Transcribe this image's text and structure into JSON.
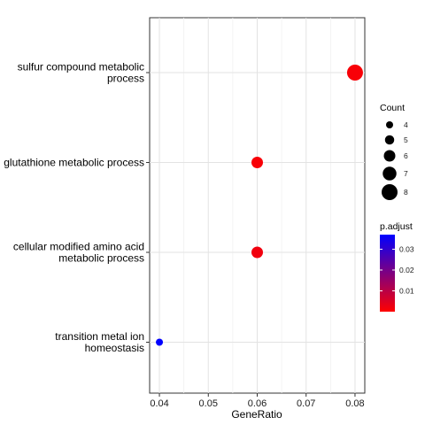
{
  "chart_data": {
    "type": "scatter",
    "xlabel": "GeneRatio",
    "ylabel": "",
    "xlim": [
      0.038,
      0.082
    ],
    "x_ticks": [
      "0.04",
      "0.05",
      "0.06",
      "0.07",
      "0.08"
    ],
    "x_tick_values": [
      0.04,
      0.05,
      0.06,
      0.07,
      0.08
    ],
    "categories": [
      [
        "sulfur compound metabolic",
        "process"
      ],
      [
        "glutathione metabolic process"
      ],
      [
        "cellular modified amino acid",
        "metabolic process"
      ],
      [
        "transition metal ion",
        "homeostasis"
      ]
    ],
    "points": [
      {
        "x": 0.08,
        "count": 8,
        "p_adjust": 0.001
      },
      {
        "x": 0.06,
        "count": 6,
        "p_adjust": 0.001
      },
      {
        "x": 0.06,
        "count": 6,
        "p_adjust": 0.002
      },
      {
        "x": 0.04,
        "count": 4,
        "p_adjust": 0.037
      }
    ],
    "grid": true,
    "legend": {
      "placement": "right",
      "size_title": "Count",
      "size_values": [
        4,
        5,
        6,
        7,
        8
      ],
      "size_labels": [
        "4",
        "5",
        "6",
        "7",
        "8"
      ],
      "color_title": "p.adjust",
      "color_range": [
        0.0,
        0.037
      ],
      "color_ticks": [
        0.01,
        0.02,
        0.03
      ],
      "color_tick_labels": [
        "0.01",
        "0.02",
        "0.03"
      ],
      "color_low": "#FF0000",
      "color_high": "#0000FF"
    }
  }
}
